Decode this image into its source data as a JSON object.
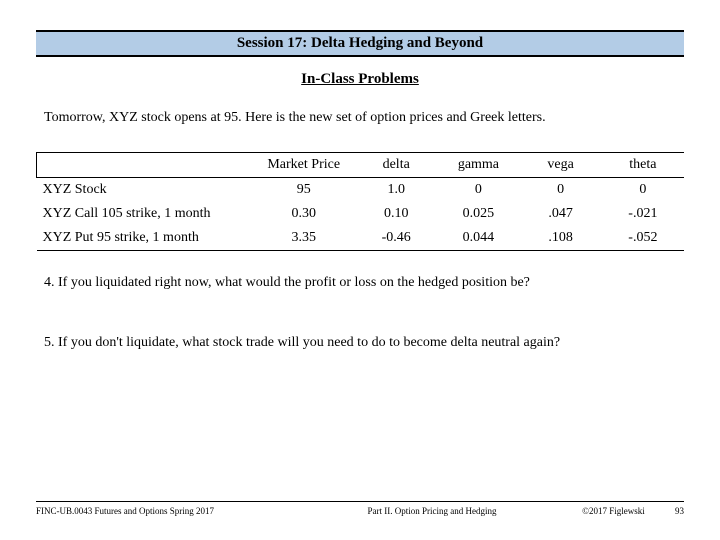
{
  "title": "Session 17: Delta Hedging and Beyond",
  "subtitle": "In-Class Problems ",
  "intro": "Tomorrow, XYZ stock opens at 95.  Here is the new set of option prices and Greek letters.",
  "table": {
    "headers": [
      "",
      "Market Price",
      "delta",
      "gamma",
      "vega",
      "theta"
    ],
    "rows": [
      {
        "label": "XYZ Stock",
        "mp": "95",
        "delta": "1.0",
        "gamma": "0",
        "vega": "0",
        "theta": "0"
      },
      {
        "label": "XYZ Call 105 strike, 1 month",
        "mp": "0.30",
        "delta": "0.10",
        "gamma": "0.025",
        "vega": ".047",
        "theta": "-.021"
      },
      {
        "label": "XYZ Put  95 strike, 1 month",
        "mp": "3.35",
        "delta": "-0.46",
        "gamma": "0.044",
        "vega": ".108",
        "theta": "-.052"
      }
    ]
  },
  "q4": "4.  If you liquidated right now, what would the profit or loss on the hedged position be?",
  "q5": "5.  If you don't liquidate, what stock trade will you need to do to become delta neutral again?",
  "footer": {
    "left": "FINC-UB.0043 Futures and Options Spring 2017",
    "center": "Part II. Option Pricing and Hedging",
    "copyright": "©2017 Figlewski",
    "page": "93"
  },
  "colors": {
    "title_bg": "#b3cce6",
    "border": "#000000",
    "text": "#000000",
    "background": "#ffffff"
  }
}
